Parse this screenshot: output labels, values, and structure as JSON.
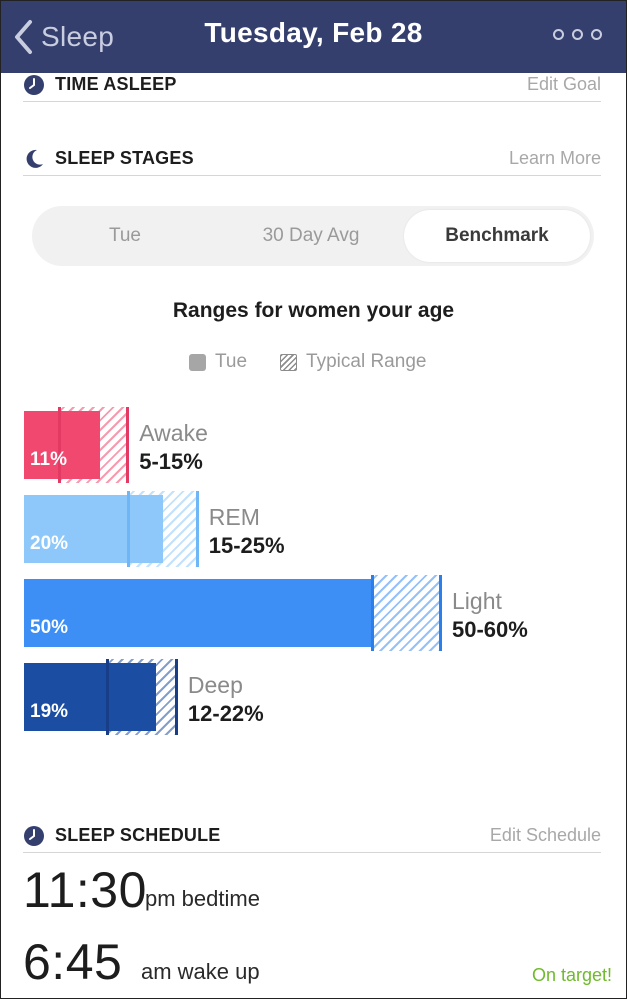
{
  "header": {
    "back_label": "Sleep",
    "title": "Tuesday, Feb 28"
  },
  "time_asleep": {
    "title": "TIME ASLEEP",
    "link": "Edit Goal"
  },
  "sleep_stages": {
    "title": "SLEEP STAGES",
    "link": "Learn More",
    "segments": [
      "Tue",
      "30 Day Avg",
      "Benchmark"
    ],
    "active_segment": "Benchmark",
    "ranges_title": "Ranges for women your age",
    "legend": {
      "actual": "Tue",
      "typical": "Typical Range"
    }
  },
  "chart_data": {
    "type": "bar",
    "categories": [
      "Awake",
      "REM",
      "Light",
      "Deep"
    ],
    "series": [
      {
        "values": [
          11,
          20,
          50,
          19
        ]
      }
    ],
    "typical_ranges": [
      [
        5,
        15
      ],
      [
        15,
        25
      ],
      [
        50,
        60
      ],
      [
        12,
        22
      ]
    ],
    "value_labels": [
      "11%",
      "20%",
      "50%",
      "19%"
    ],
    "range_labels": [
      "5-15%",
      "15-25%",
      "50-60%",
      "12-22%"
    ],
    "colors": [
      "#f0486f",
      "#8ec8fb",
      "#3d8ef5",
      "#1b4ea3"
    ],
    "range_line_colors": [
      "#e33a63",
      "#6fb6f6",
      "#2c7ee8",
      "#173e86"
    ]
  },
  "sleep_schedule": {
    "title": "SLEEP SCHEDULE",
    "link": "Edit Schedule",
    "bedtime_time": "11:30",
    "bedtime_label": "pm bedtime",
    "wake_time": "6:45",
    "wake_label": "am wake up",
    "status": "On target!",
    "status_color": "#6fba2c"
  }
}
